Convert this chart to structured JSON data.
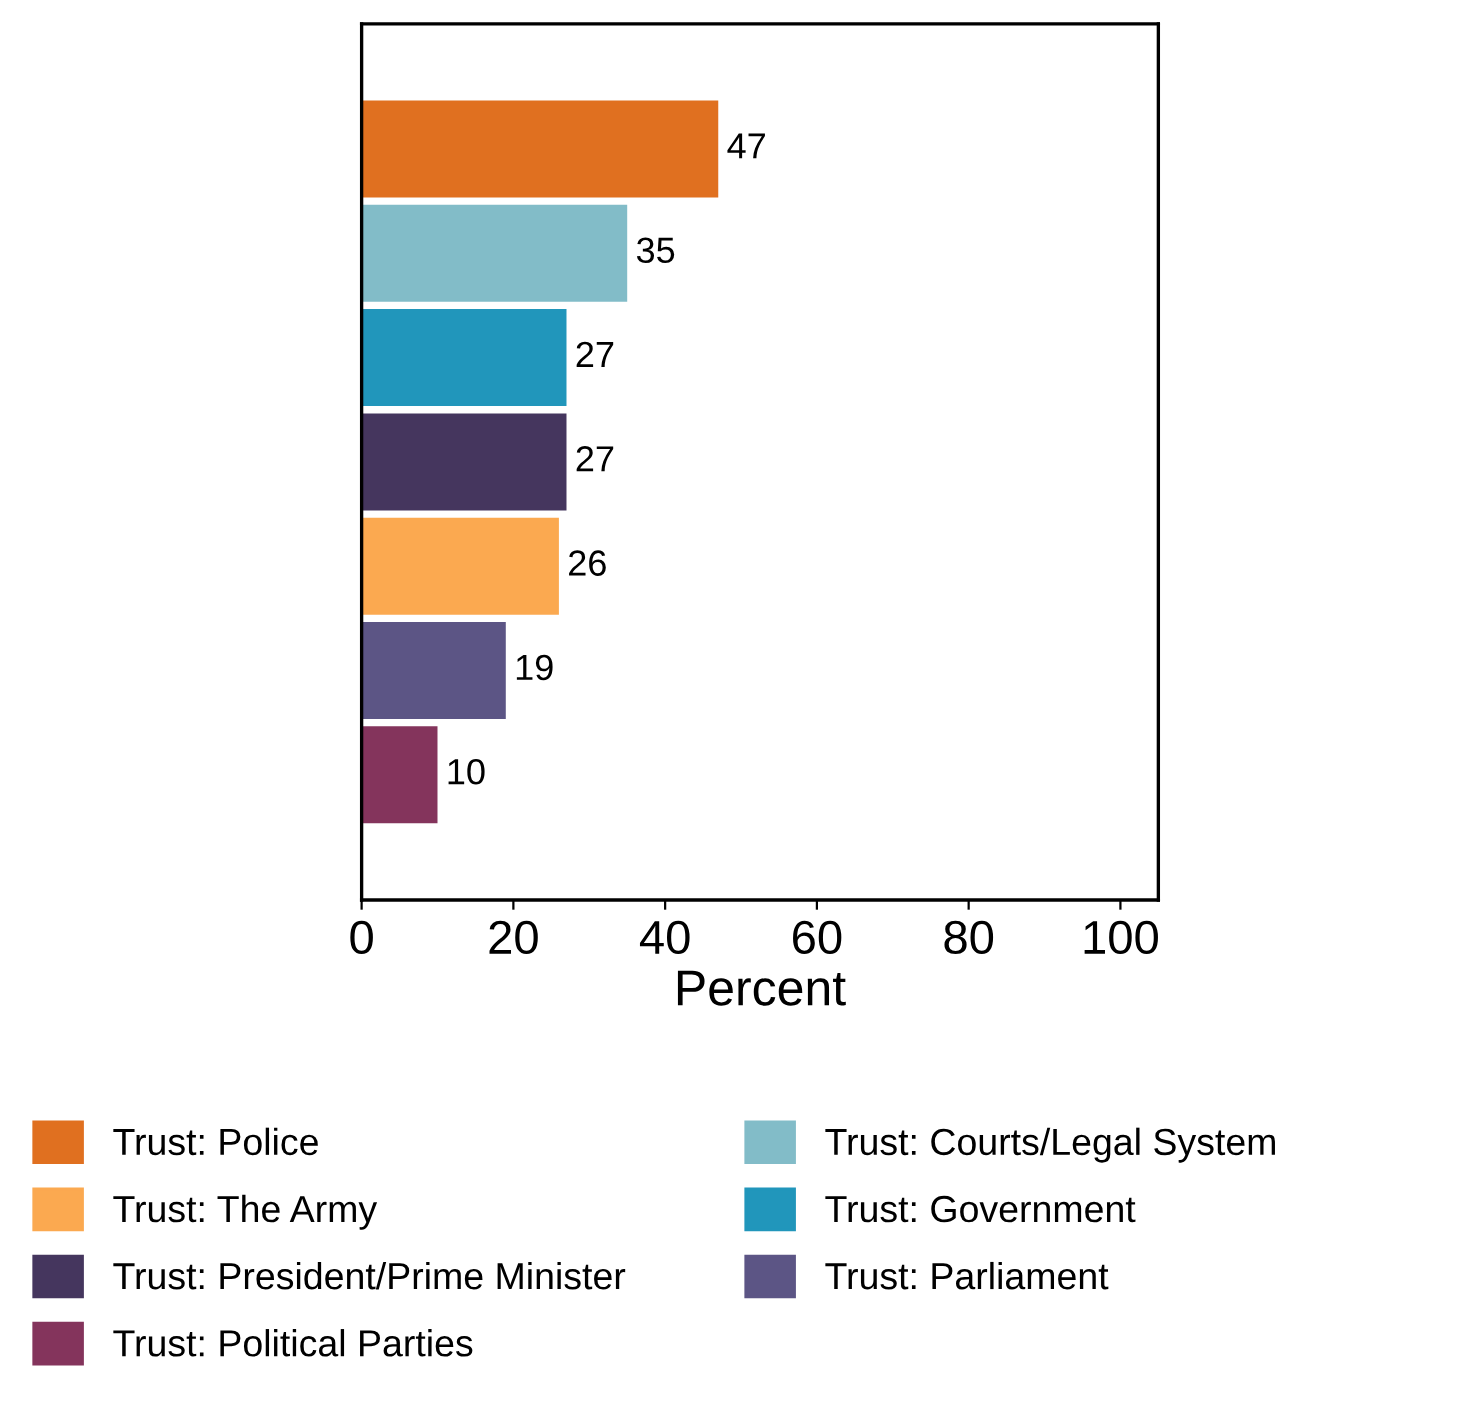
{
  "chart_data": {
    "type": "bar",
    "orientation": "horizontal",
    "xlabel": "Percent",
    "categories": [
      null,
      null,
      null,
      null,
      null,
      null,
      null
    ],
    "series": [
      {
        "name": "Trust: Police",
        "color": "#e07020",
        "values": [
          47,
          null,
          null,
          null,
          null,
          null,
          null
        ]
      },
      {
        "name": "Trust: The Army",
        "color": "#fba950",
        "values": [
          null,
          null,
          null,
          null,
          26,
          null,
          null
        ]
      },
      {
        "name": "Trust: President/Prime Minister",
        "color": "#45365e",
        "values": [
          null,
          null,
          null,
          27,
          null,
          null,
          null
        ]
      },
      {
        "name": "Trust: Political Parties",
        "color": "#84345c",
        "values": [
          null,
          null,
          null,
          null,
          null,
          null,
          10
        ]
      },
      {
        "name": "Trust: Courts/Legal System",
        "color": "#82bcc8",
        "values": [
          null,
          35,
          null,
          null,
          null,
          null,
          null
        ]
      },
      {
        "name": "Trust: Government",
        "color": "#2196bb",
        "values": [
          null,
          null,
          27,
          null,
          null,
          null,
          null
        ]
      },
      {
        "name": "Trust: Parliament",
        "color": "#5c5585",
        "values": [
          null,
          null,
          null,
          null,
          null,
          19,
          null
        ]
      }
    ],
    "xlim": [
      0,
      105
    ],
    "xticks": [
      0,
      20,
      40,
      60,
      80,
      100
    ],
    "data_labels": true,
    "legend": "bottom",
    "tick_labels": "x",
    "grid": false
  }
}
